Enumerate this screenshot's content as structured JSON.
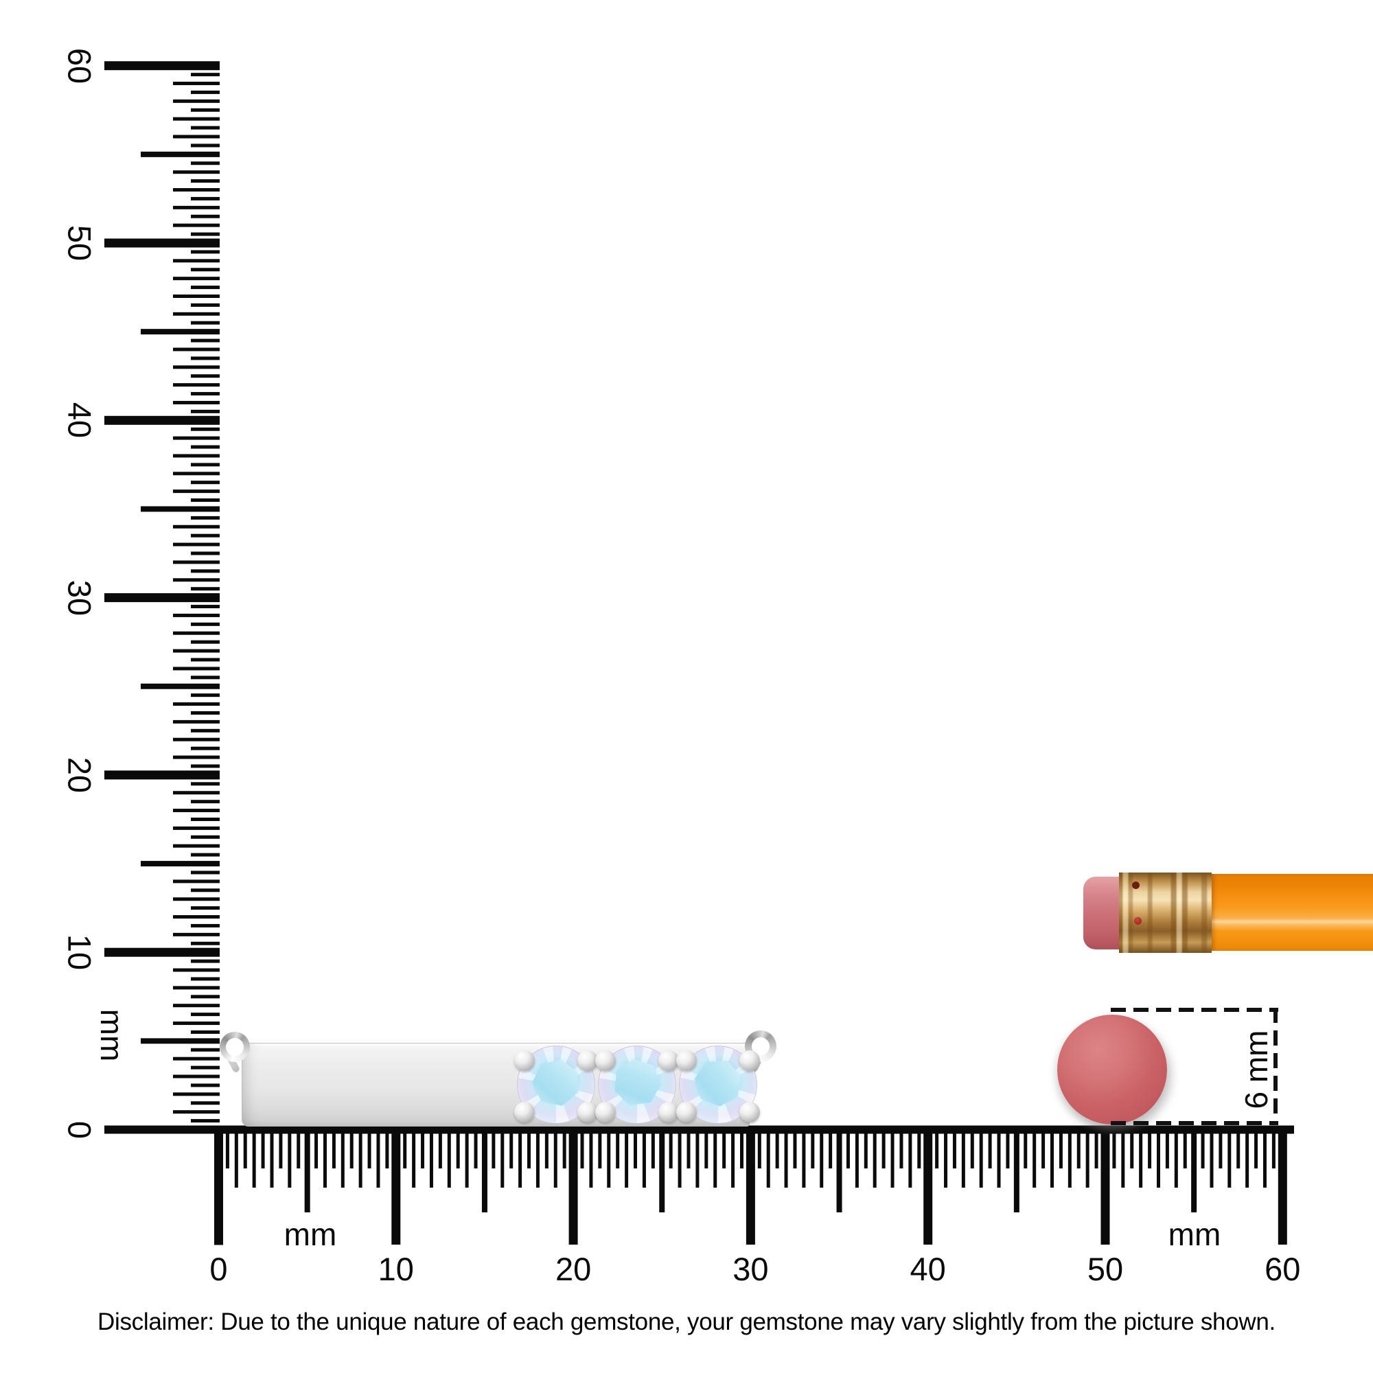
{
  "rulers": {
    "range_mm": {
      "min": 0,
      "max": 60,
      "major_step": 10,
      "minor_step": 0.5
    },
    "vertical": {
      "unit_label": "mm",
      "labels": [
        "0",
        "10",
        "20",
        "30",
        "40",
        "50",
        "60"
      ]
    },
    "horizontal": {
      "unit_label_left": "mm",
      "unit_label_right": "mm",
      "labels": [
        "0",
        "10",
        "20",
        "30",
        "40",
        "50",
        "60"
      ]
    }
  },
  "measurement_callout": {
    "label": "6 mm"
  },
  "pendant": {
    "gem_count": 3
  },
  "disclaimer": "Disclaimer: Due to the unique nature of each gemstone, your gemstone may vary slightly from the picture shown.",
  "colors": {
    "ruler_ink": "#0a0a0a",
    "pencil_orange": "#f79214",
    "pencil_highlight": "#ffd69e",
    "ferrule_gold": "#d9ae6b",
    "eraser_pink": "#cb6e76",
    "eraser_top": "#ca6266",
    "gem_blue": "#b6e5f4",
    "gem_lavender": "#d5d1ee",
    "silver": "#e7e7e7",
    "text": "#000000"
  }
}
